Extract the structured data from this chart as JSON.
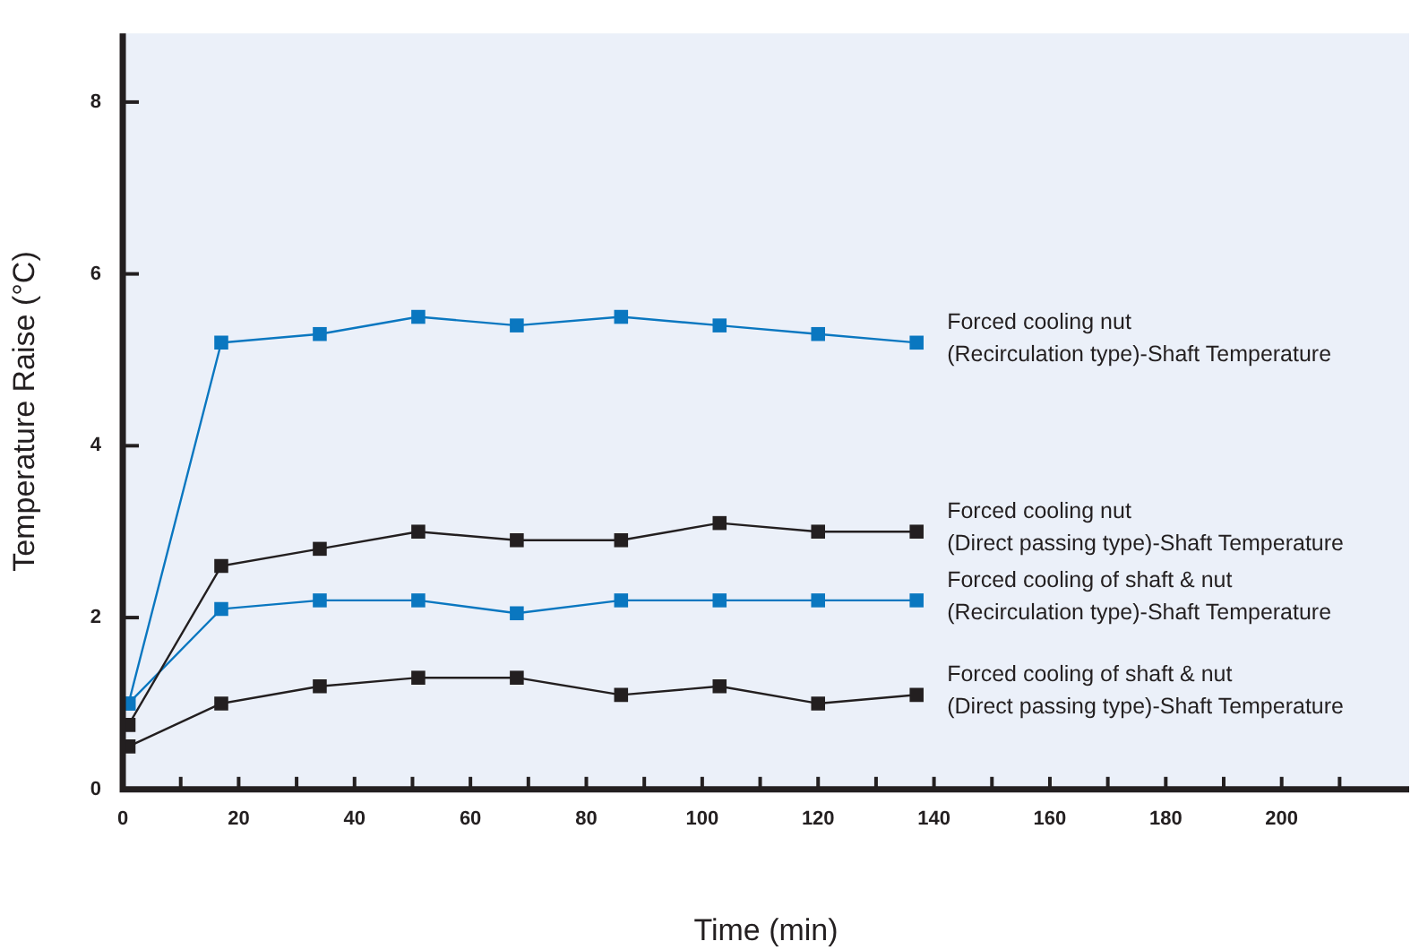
{
  "chart_data": {
    "type": "line",
    "xlabel": "Time (min)",
    "ylabel": "Temperature Raise (°C)",
    "xlim": [
      0,
      222
    ],
    "ylim": [
      0,
      8.8
    ],
    "xticks": [
      0,
      {
        "value": 10,
        "label": null
      },
      20,
      {
        "value": 30,
        "label": null
      },
      40,
      {
        "value": 50,
        "label": null
      },
      60,
      {
        "value": 70,
        "label": null
      },
      80,
      {
        "value": 90,
        "label": null
      },
      100,
      {
        "value": 110,
        "label": null
      },
      120,
      {
        "value": 130,
        "label": null
      },
      140,
      {
        "value": 150,
        "label": null
      },
      160,
      {
        "value": 170,
        "label": null
      },
      180,
      {
        "value": 190,
        "label": null
      },
      200,
      {
        "value": 210,
        "label": null
      }
    ],
    "yticks": [
      0,
      2,
      4,
      6,
      8
    ],
    "grid": false,
    "legend": false,
    "marker": "square",
    "line_style": "solid",
    "x": [
      1,
      17,
      34,
      51,
      68,
      86,
      103,
      120,
      137
    ],
    "series": [
      {
        "name": "Forced cooling nut (Recirculation type)-Shaft Temperature",
        "color": "#0a77c0",
        "values": [
          1.0,
          5.2,
          5.3,
          5.5,
          5.4,
          5.5,
          5.4,
          5.3,
          5.2
        ]
      },
      {
        "name": "Forced cooling nut (Direct passing type)-Shaft Temperature",
        "color": "#231f20",
        "values": [
          0.75,
          2.6,
          2.8,
          3.0,
          2.9,
          2.9,
          3.1,
          3.0,
          3.0
        ]
      },
      {
        "name": "Forced cooling of shaft & nut (Recirculation type)-Shaft Temperature",
        "color": "#0a77c0",
        "values": [
          1.0,
          2.1,
          2.2,
          2.2,
          2.05,
          2.2,
          2.2,
          2.2,
          2.2
        ]
      },
      {
        "name": "Forced cooling of shaft & nut (Direct passing type)-Shaft Temperature",
        "color": "#231f20",
        "values": [
          0.5,
          1.0,
          1.2,
          1.3,
          1.3,
          1.1,
          1.2,
          1.0,
          1.1
        ]
      }
    ]
  }
}
